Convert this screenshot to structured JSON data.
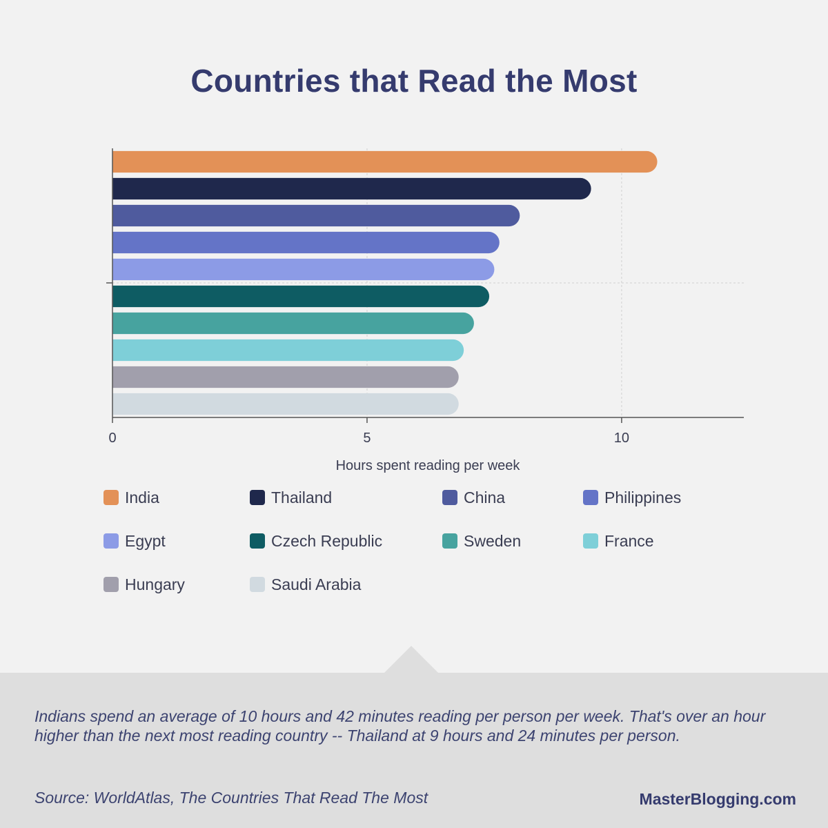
{
  "title": "Countries that Read the Most",
  "chart_data": {
    "type": "bar",
    "orientation": "horizontal",
    "xlabel": "Hours spent reading per week",
    "xlim": [
      0,
      12.4
    ],
    "xticks": [
      0,
      5,
      10
    ],
    "grid": true,
    "legend_position": "bottom",
    "categories": [
      "India",
      "Thailand",
      "China",
      "Philippines",
      "Egypt",
      "Czech Republic",
      "Sweden",
      "France",
      "Hungary",
      "Saudi Arabia"
    ],
    "values": [
      10.7,
      9.4,
      8.0,
      7.6,
      7.5,
      7.4,
      7.1,
      6.9,
      6.8,
      6.8
    ],
    "colors": [
      "#e39157",
      "#1f284c",
      "#4f5b9e",
      "#6474c7",
      "#8c9be6",
      "#0e5c63",
      "#47a39f",
      "#7ecfd8",
      "#a19fac",
      "#d1dae0"
    ]
  },
  "caption": "Indians spend an average of 10 hours and 42 minutes reading per person per week. That's over an hour higher than the next most reading country -- Thailand at 9 hours and 24 minutes per person.",
  "source": "Source: WorldAtlas, The Countries That Read The Most",
  "brand": "MasterBlogging.com"
}
